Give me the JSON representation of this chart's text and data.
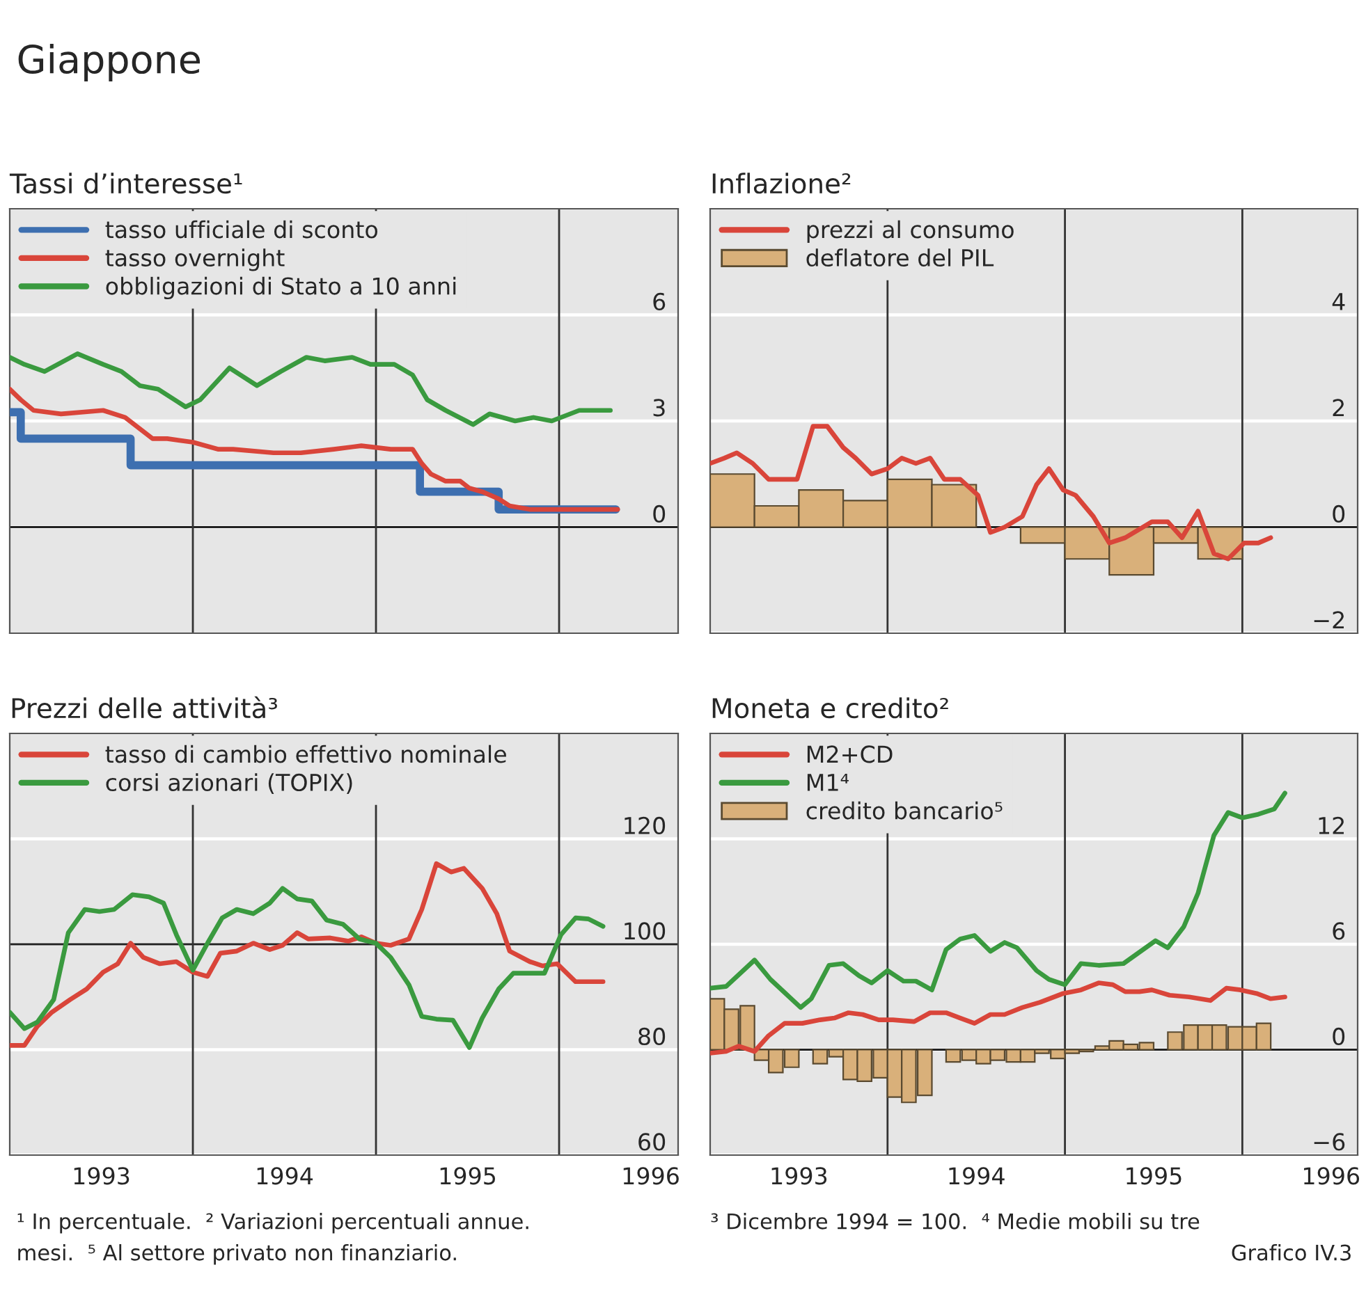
{
  "chart_data": [
    {
      "type": "other",
      "title": "Giappone",
      "annotations": [
        "¹ In percentuale.  ² Variazioni percentuali annue.",
        "³ Dicembre 1994 = 100.  ⁴ Medie mobili su tre",
        "mesi.  ⁵ Al settore privato non finanziario.",
        "Grafico IV.3"
      ]
    },
    {
      "type": "line",
      "title": "Tassi d’interesse¹",
      "xlim": [
        1993,
        1996.65
      ],
      "ylim": [
        -3,
        9
      ],
      "yticks": [
        0,
        3,
        6
      ],
      "grid": "y",
      "legend": "top left",
      "ref_lines": [
        {
          "axis": "y",
          "value": 0,
          "color": "#222222"
        },
        {
          "axis": "x",
          "value": 1994,
          "color": "#333333"
        },
        {
          "axis": "x",
          "value": 1995,
          "color": "#333333"
        },
        {
          "axis": "x",
          "value": 1996,
          "color": "#333333"
        }
      ],
      "series": [
        {
          "name": "tasso ufficiale di sconto",
          "type": "step",
          "color": "#3d6fb0",
          "x": [
            1993.0,
            1993.06,
            1993.66,
            1995.24,
            1995.67,
            1996.31
          ],
          "values": [
            3.25,
            2.5,
            1.75,
            1.0,
            0.5,
            0.5
          ]
        },
        {
          "name": "tasso overnight",
          "color": "#d9453a",
          "x": [
            1993.0,
            1993.06,
            1993.13,
            1993.28,
            1993.51,
            1993.63,
            1993.78,
            1993.86,
            1994.0,
            1994.14,
            1994.22,
            1994.44,
            1994.59,
            1994.77,
            1994.92,
            1995.08,
            1995.2,
            1995.25,
            1995.3,
            1995.38,
            1995.46,
            1995.51,
            1995.58,
            1995.67,
            1995.73,
            1995.84,
            1996.32
          ],
          "values": [
            3.9,
            3.6,
            3.3,
            3.2,
            3.3,
            3.1,
            2.5,
            2.5,
            2.4,
            2.2,
            2.2,
            2.1,
            2.1,
            2.2,
            2.3,
            2.2,
            2.2,
            1.8,
            1.5,
            1.3,
            1.3,
            1.1,
            1.0,
            0.8,
            0.6,
            0.5,
            0.5
          ]
        },
        {
          "name": "obbligazioni di Stato a 10 anni",
          "color": "#3a9a3f",
          "x": [
            1993.0,
            1993.08,
            1993.19,
            1993.37,
            1993.51,
            1993.61,
            1993.71,
            1993.81,
            1993.96,
            1994.04,
            1994.2,
            1994.35,
            1994.48,
            1994.62,
            1994.72,
            1994.87,
            1994.97,
            1995.1,
            1995.2,
            1995.28,
            1995.38,
            1995.53,
            1995.62,
            1995.76,
            1995.86,
            1995.96,
            1996.11,
            1996.28
          ],
          "values": [
            4.8,
            4.6,
            4.4,
            4.9,
            4.6,
            4.4,
            4.0,
            3.9,
            3.4,
            3.6,
            4.5,
            4.0,
            4.4,
            4.8,
            4.7,
            4.8,
            4.6,
            4.6,
            4.3,
            3.6,
            3.3,
            2.9,
            3.2,
            3.0,
            3.1,
            3.0,
            3.3,
            3.3
          ]
        }
      ]
    },
    {
      "type": "line",
      "title": "Inflazione²",
      "xlim": [
        1993,
        1996.65
      ],
      "ylim": [
        -2,
        6
      ],
      "yticks": [
        {
          "value": -2,
          "label": "−2"
        },
        0,
        2,
        4
      ],
      "grid": "y",
      "legend": "top left",
      "ref_lines": [
        {
          "axis": "y",
          "value": 0,
          "color": "#222222"
        },
        {
          "axis": "x",
          "value": 1994,
          "color": "#333333"
        },
        {
          "axis": "x",
          "value": 1995,
          "color": "#333333"
        },
        {
          "axis": "x",
          "value": 1996,
          "color": "#333333"
        }
      ],
      "series": [
        {
          "name": "prezzi al consumo",
          "color": "#d9453a",
          "x": [
            1993.0,
            1993.08,
            1993.15,
            1993.24,
            1993.33,
            1993.49,
            1993.58,
            1993.66,
            1993.75,
            1993.82,
            1993.91,
            1994.0,
            1994.08,
            1994.16,
            1994.24,
            1994.32,
            1994.41,
            1994.51,
            1994.58,
            1994.66,
            1994.76,
            1994.84,
            1994.91,
            1994.99,
            1995.06,
            1995.16,
            1995.25,
            1995.34,
            1995.49,
            1995.58,
            1995.66,
            1995.75,
            1995.84,
            1995.92,
            1996.01,
            1996.09,
            1996.16
          ],
          "values": [
            1.2,
            1.3,
            1.4,
            1.2,
            0.9,
            0.9,
            1.9,
            1.9,
            1.5,
            1.3,
            1.0,
            1.1,
            1.3,
            1.2,
            1.3,
            0.9,
            0.9,
            0.6,
            -0.1,
            0.0,
            0.2,
            0.8,
            1.1,
            0.7,
            0.6,
            0.2,
            -0.3,
            -0.2,
            0.1,
            0.1,
            -0.2,
            0.3,
            -0.5,
            -0.6,
            -0.3,
            -0.3,
            -0.2
          ]
        },
        {
          "name": "deflatore del PIL",
          "type": "bar",
          "color": "#d9b07a",
          "x": [
            1993.125,
            1993.375,
            1993.625,
            1993.875,
            1994.125,
            1994.375,
            1994.625,
            1994.875,
            1995.125,
            1995.375,
            1995.625,
            1995.875
          ],
          "values": [
            1.0,
            0.4,
            0.7,
            0.5,
            0.9,
            0.8,
            null,
            -0.3,
            -0.6,
            -0.9,
            -0.3,
            -0.6
          ]
        }
      ]
    },
    {
      "type": "line",
      "title": "Prezzi delle attività³",
      "xlim": [
        1993,
        1996.65
      ],
      "xticks": [
        {
          "value": 1993.5,
          "label": "1993"
        },
        {
          "value": 1994.5,
          "label": "1994"
        },
        {
          "value": 1995.5,
          "label": "1995"
        },
        {
          "value": 1996.5,
          "label": "1996"
        }
      ],
      "ylim": [
        60,
        140
      ],
      "yticks": [
        60,
        80,
        100,
        120
      ],
      "grid": "y",
      "legend": "top left",
      "ref_lines": [
        {
          "axis": "y",
          "value": 100,
          "color": "#222222"
        },
        {
          "axis": "x",
          "value": 1994,
          "color": "#333333"
        },
        {
          "axis": "x",
          "value": 1995,
          "color": "#333333"
        },
        {
          "axis": "x",
          "value": 1996,
          "color": "#333333"
        }
      ],
      "series": [
        {
          "name": "tasso di cambio effettivo nominale",
          "color": "#d9453a",
          "x": [
            1993.0,
            1993.08,
            1993.15,
            1993.23,
            1993.33,
            1993.42,
            1993.51,
            1993.59,
            1993.66,
            1993.73,
            1993.82,
            1993.91,
            1994.0,
            1994.08,
            1994.15,
            1994.24,
            1994.33,
            1994.42,
            1994.49,
            1994.57,
            1994.63,
            1994.75,
            1994.85,
            1994.92,
            1995.0,
            1995.08,
            1995.18,
            1995.25,
            1995.33,
            1995.41,
            1995.48,
            1995.58,
            1995.66,
            1995.73,
            1995.84,
            1995.91,
            1995.99,
            1996.09,
            1996.24
          ],
          "values": [
            80.8,
            80.8,
            84.4,
            87.1,
            89.5,
            91.5,
            94.7,
            96.3,
            100.2,
            97.5,
            96.3,
            96.7,
            94.7,
            93.9,
            98.3,
            98.7,
            100.2,
            99.0,
            99.8,
            102.2,
            101.0,
            101.2,
            100.6,
            101.4,
            100.2,
            99.8,
            101.0,
            106.6,
            115.3,
            113.7,
            114.4,
            110.6,
            105.8,
            98.7,
            96.7,
            95.9,
            96.3,
            92.9,
            92.9
          ]
        },
        {
          "name": "corsi azionari (TOPIX)",
          "color": "#3a9a3f",
          "x": [
            1993.0,
            1993.08,
            1993.15,
            1993.24,
            1993.32,
            1993.41,
            1993.49,
            1993.57,
            1993.67,
            1993.76,
            1993.84,
            1993.91,
            1994.0,
            1994.08,
            1994.16,
            1994.24,
            1994.33,
            1994.42,
            1994.49,
            1994.57,
            1994.65,
            1994.73,
            1994.82,
            1994.91,
            1995.0,
            1995.08,
            1995.18,
            1995.25,
            1995.33,
            1995.42,
            1995.51,
            1995.58,
            1995.67,
            1995.75,
            1995.84,
            1995.92,
            1996.01,
            1996.09,
            1996.16,
            1996.24
          ],
          "values": [
            87.1,
            84.0,
            85.2,
            89.5,
            102.2,
            106.6,
            106.2,
            106.6,
            109.4,
            109.0,
            107.8,
            101.8,
            95.1,
            100.2,
            105.0,
            106.6,
            105.8,
            107.8,
            110.6,
            108.6,
            108.2,
            104.6,
            103.8,
            101.0,
            100.2,
            97.5,
            92.3,
            86.3,
            85.8,
            85.6,
            80.4,
            86.0,
            91.5,
            94.5,
            94.5,
            94.5,
            101.8,
            105.0,
            104.8,
            103.4
          ]
        }
      ]
    },
    {
      "type": "line",
      "title": "Moneta e credito²",
      "xlim": [
        1993,
        1996.65
      ],
      "xticks": [
        {
          "value": 1993.5,
          "label": "1993"
        },
        {
          "value": 1994.5,
          "label": "1994"
        },
        {
          "value": 1995.5,
          "label": "1995"
        },
        {
          "value": 1996.5,
          "label": "1996"
        }
      ],
      "ylim": [
        -6,
        18
      ],
      "yticks": [
        {
          "value": -6,
          "label": "−6"
        },
        0,
        6,
        12
      ],
      "grid": "y",
      "legend": "top left",
      "ref_lines": [
        {
          "axis": "y",
          "value": 0,
          "color": "#222222"
        },
        {
          "axis": "x",
          "value": 1994,
          "color": "#333333"
        },
        {
          "axis": "x",
          "value": 1995,
          "color": "#333333"
        },
        {
          "axis": "x",
          "value": 1996,
          "color": "#333333"
        }
      ],
      "series": [
        {
          "name": "M2+CD",
          "color": "#d9453a",
          "x": [
            1993.0,
            1993.09,
            1993.16,
            1993.25,
            1993.33,
            1993.42,
            1993.52,
            1993.62,
            1993.7,
            1993.78,
            1993.86,
            1993.95,
            1994.03,
            1994.15,
            1994.24,
            1994.33,
            1994.41,
            1994.49,
            1994.58,
            1994.66,
            1994.76,
            1994.86,
            1994.99,
            1995.09,
            1995.19,
            1995.27,
            1995.34,
            1995.42,
            1995.49,
            1995.59,
            1995.7,
            1995.82,
            1995.91,
            1995.99,
            1996.08,
            1996.16,
            1996.24
          ],
          "values": [
            -0.2,
            -0.1,
            0.2,
            -0.1,
            0.8,
            1.5,
            1.5,
            1.7,
            1.8,
            2.1,
            2.0,
            1.7,
            1.7,
            1.6,
            2.1,
            2.1,
            1.8,
            1.5,
            2.0,
            2.0,
            2.4,
            2.7,
            3.2,
            3.4,
            3.8,
            3.7,
            3.3,
            3.3,
            3.4,
            3.1,
            3.0,
            2.8,
            3.5,
            3.4,
            3.2,
            2.9,
            3.0
          ]
        },
        {
          "name": "M1⁴",
          "color": "#3a9a3f",
          "x": [
            1993.0,
            1993.09,
            1993.25,
            1993.34,
            1993.51,
            1993.57,
            1993.67,
            1993.75,
            1993.84,
            1993.91,
            1994.0,
            1994.09,
            1994.16,
            1994.25,
            1994.33,
            1994.41,
            1994.49,
            1994.58,
            1994.66,
            1994.73,
            1994.84,
            1994.91,
            1995.0,
            1995.09,
            1995.19,
            1995.33,
            1995.51,
            1995.58,
            1995.67,
            1995.75,
            1995.84,
            1995.92,
            1996.0,
            1996.09,
            1996.18,
            1996.24
          ],
          "values": [
            3.5,
            3.6,
            5.1,
            4.0,
            2.4,
            2.9,
            4.8,
            4.9,
            4.2,
            3.8,
            4.5,
            3.9,
            3.9,
            3.4,
            5.7,
            6.3,
            6.5,
            5.6,
            6.1,
            5.8,
            4.5,
            4.0,
            3.7,
            4.9,
            4.8,
            4.9,
            6.2,
            5.8,
            7.0,
            8.9,
            12.2,
            13.5,
            13.2,
            13.4,
            13.7,
            14.6
          ]
        },
        {
          "name": "credito bancario⁵",
          "type": "bar",
          "color": "#d9b07a",
          "x": [
            1993.04,
            1993.12,
            1993.21,
            1993.29,
            1993.37,
            1993.46,
            1993.54,
            1993.62,
            1993.71,
            1993.79,
            1993.87,
            1993.96,
            1994.04,
            1994.12,
            1994.21,
            1994.29,
            1994.37,
            1994.46,
            1994.54,
            1994.62,
            1994.71,
            1994.79,
            1994.87,
            1994.96,
            1995.04,
            1995.12,
            1995.21,
            1995.29,
            1995.37,
            1995.46,
            1995.54,
            1995.62,
            1995.71,
            1995.79,
            1995.87,
            1995.96,
            1996.04,
            1996.12
          ],
          "values": [
            2.9,
            2.3,
            2.5,
            -0.6,
            -1.3,
            -1.0,
            null,
            -0.8,
            -0.4,
            -1.7,
            -1.8,
            -1.6,
            -2.7,
            -3.0,
            -2.6,
            null,
            -0.7,
            -0.6,
            -0.8,
            -0.6,
            -0.7,
            -0.7,
            -0.2,
            -0.5,
            -0.2,
            -0.1,
            0.2,
            0.5,
            0.3,
            0.4,
            null,
            1.0,
            1.4,
            1.4,
            1.4,
            1.3,
            1.3,
            1.5
          ]
        }
      ]
    }
  ]
}
